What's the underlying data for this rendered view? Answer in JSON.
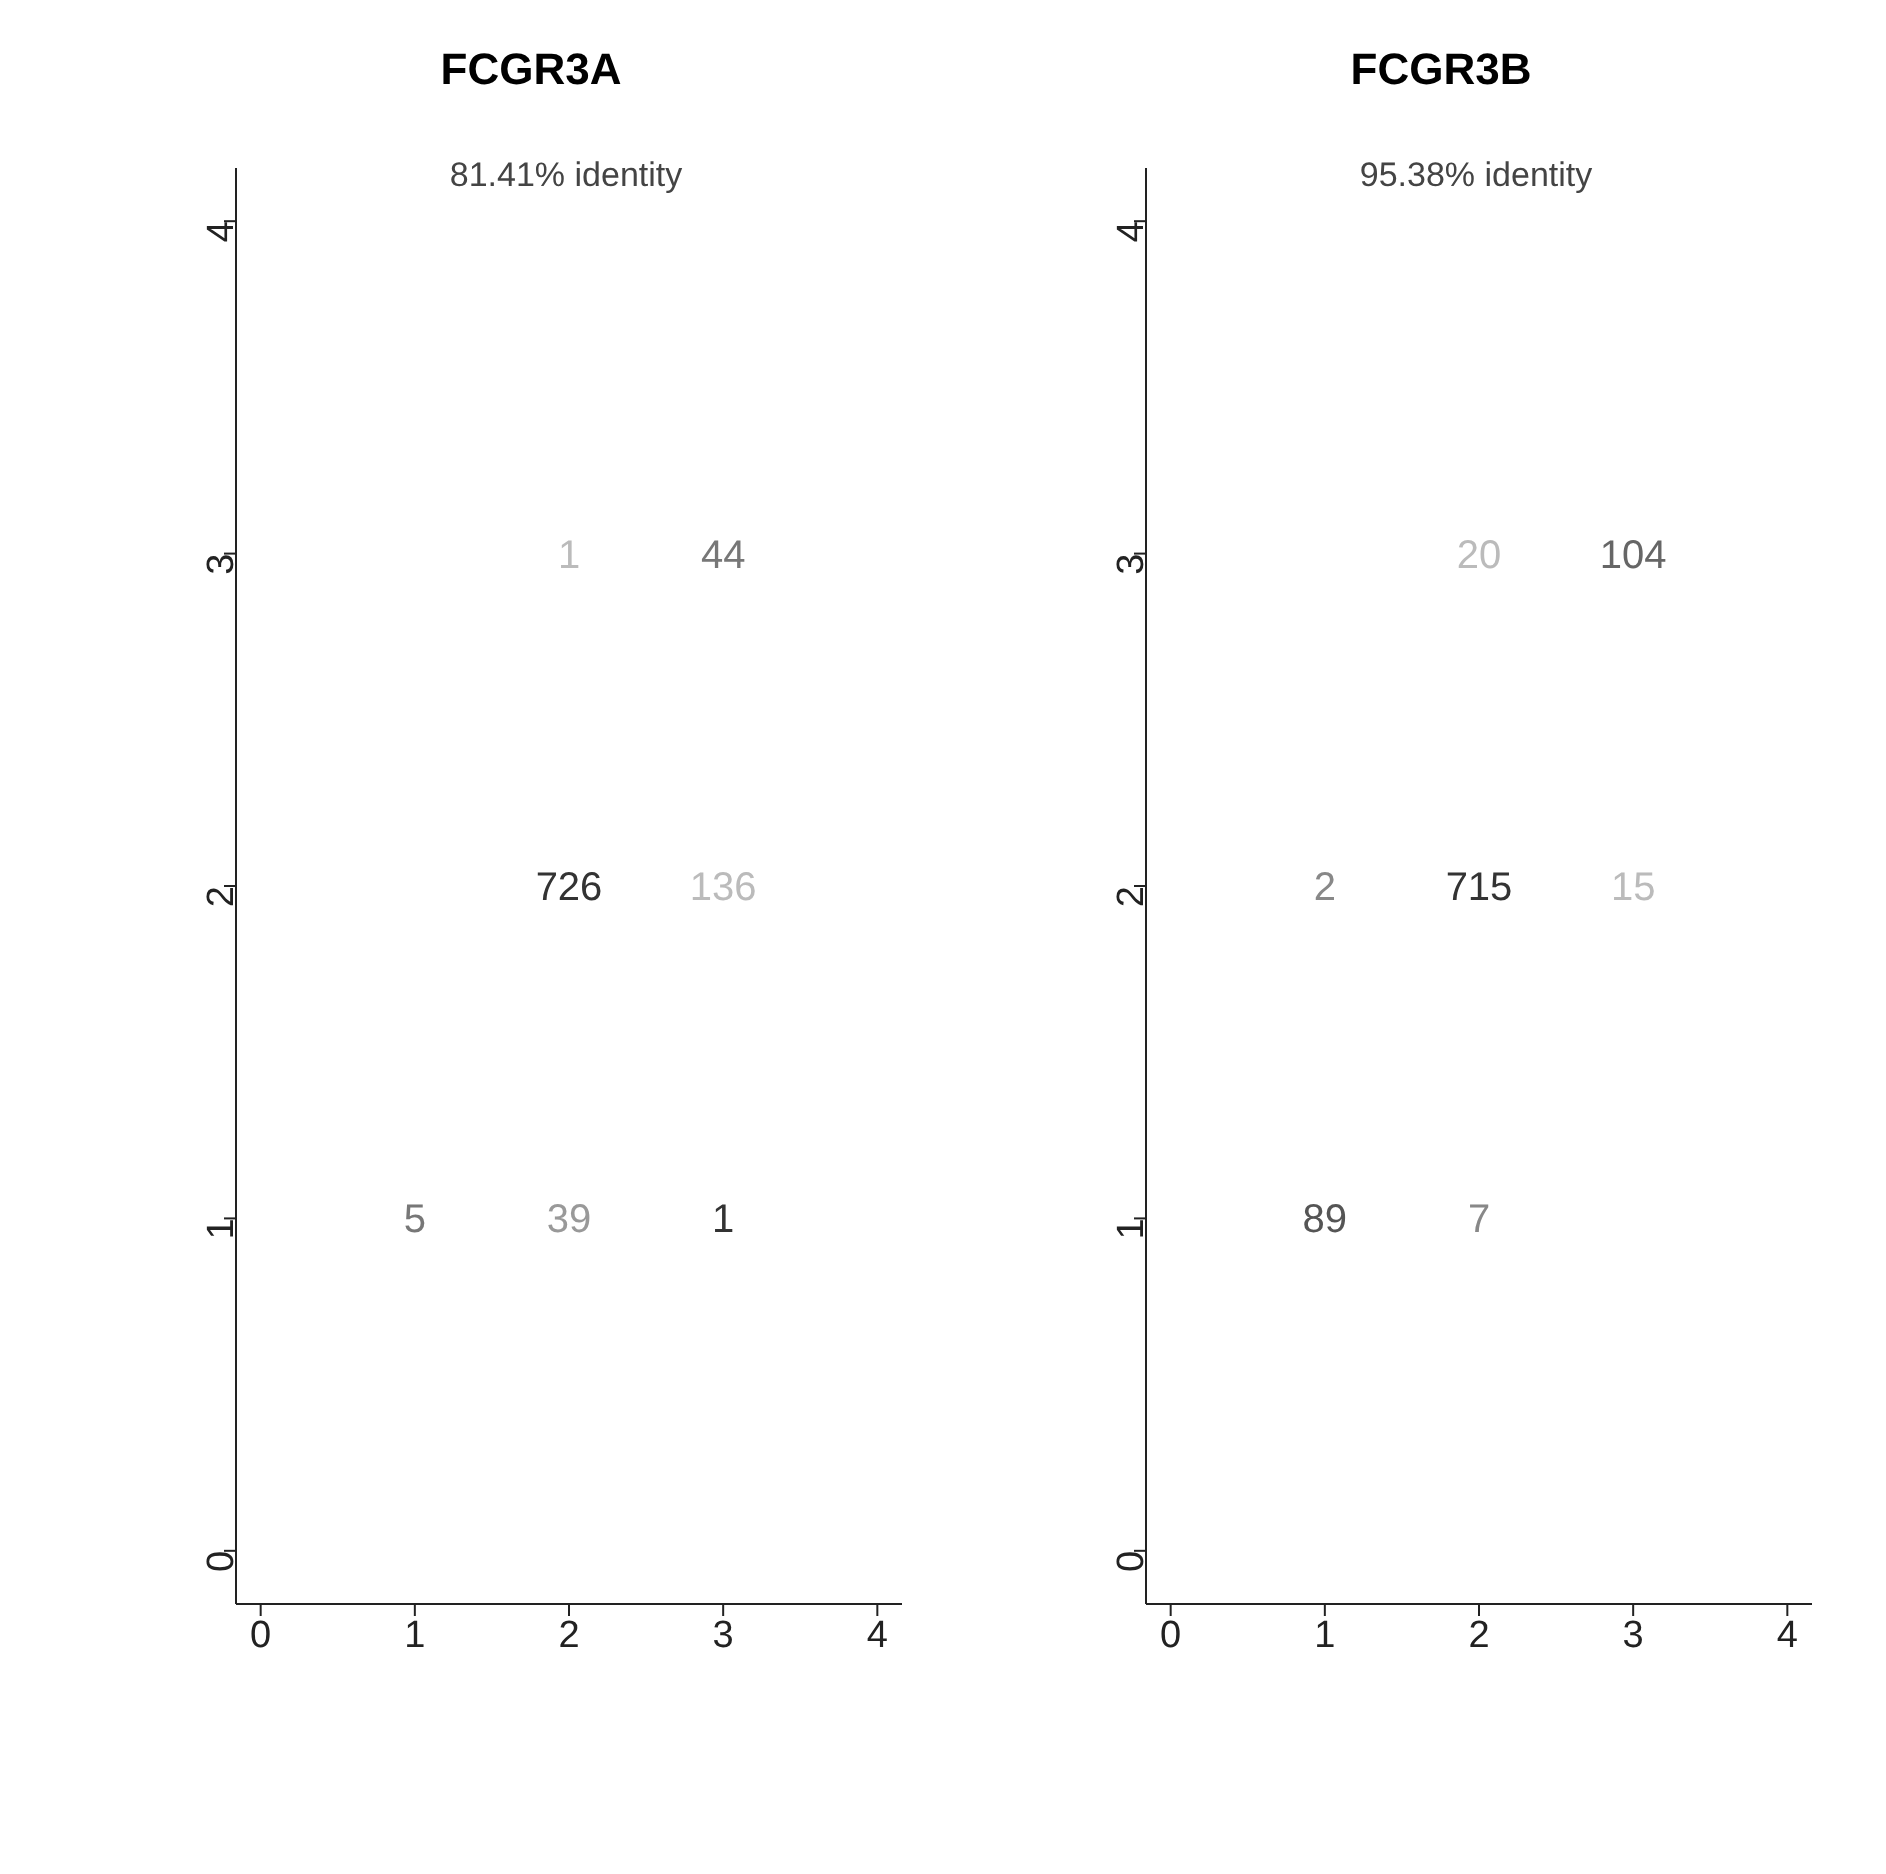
{
  "chart_data": [
    {
      "type": "heatmap",
      "data_labels": true,
      "title": "FCGR3A",
      "annotations": [
        "81.41% identity"
      ],
      "categories": [
        "0",
        "1",
        "2",
        "3",
        "4"
      ],
      "y_categories": [
        "4",
        "3",
        "2",
        "1",
        "0"
      ],
      "cells": [
        [
          null,
          null,
          null,
          null,
          null
        ],
        [
          null,
          null,
          1,
          44,
          null
        ],
        [
          null,
          null,
          726,
          136,
          null
        ],
        [
          null,
          5,
          39,
          1,
          null
        ],
        [
          null,
          null,
          null,
          null,
          null
        ]
      ],
      "colors": [
        [
          null,
          null,
          null,
          null,
          null
        ],
        [
          null,
          null,
          "#bbbbbb",
          "#777777",
          null
        ],
        [
          null,
          null,
          "#333333",
          "#bbbbbb",
          null
        ],
        [
          null,
          "#777777",
          "#999999",
          "#333333",
          null
        ],
        [
          null,
          null,
          null,
          null,
          null
        ]
      ]
    },
    {
      "type": "heatmap",
      "data_labels": true,
      "title": "FCGR3B",
      "annotations": [
        "95.38% identity"
      ],
      "categories": [
        "0",
        "1",
        "2",
        "3",
        "4"
      ],
      "y_categories": [
        "4",
        "3",
        "2",
        "1",
        "0"
      ],
      "cells": [
        [
          null,
          null,
          null,
          null,
          null
        ],
        [
          null,
          null,
          20,
          104,
          null
        ],
        [
          null,
          2,
          715,
          15,
          null
        ],
        [
          null,
          89,
          7,
          null,
          null
        ],
        [
          null,
          null,
          null,
          null,
          null
        ]
      ],
      "colors": [
        [
          null,
          null,
          null,
          null,
          null
        ],
        [
          null,
          null,
          "#bbbbbb",
          "#666666",
          null
        ],
        [
          null,
          "#888888",
          "#333333",
          "#bbbbbb",
          null
        ],
        [
          null,
          "#555555",
          "#888888",
          null,
          null
        ],
        [
          null,
          null,
          null,
          null,
          null
        ]
      ]
    }
  ]
}
